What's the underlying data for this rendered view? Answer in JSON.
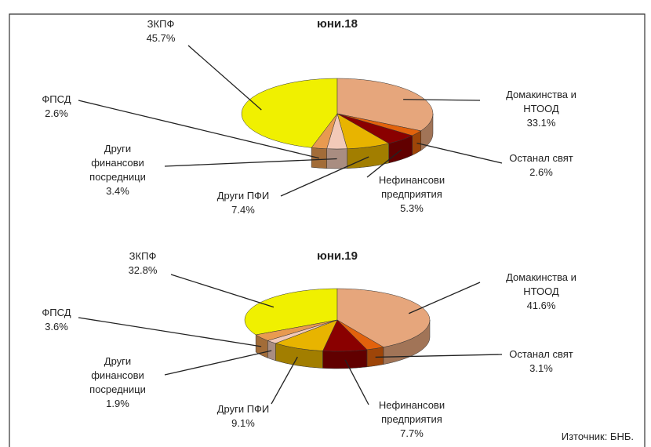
{
  "chart_data": [
    {
      "type": "pie3d",
      "title": "юни.18",
      "categories": [
        "ЗКПФ",
        "Домакинства и\nНТООД",
        "Останал свят",
        "Нефинансови\nпредприятия",
        "Други ПФИ",
        "Други\nфинансови\nпосредници",
        "ФПСД"
      ],
      "values": [
        45.7,
        33.1,
        2.6,
        5.3,
        7.4,
        3.4,
        2.6
      ],
      "value_labels": [
        "45.7%",
        "33.1%",
        "2.6%",
        "5.3%",
        "7.4%",
        "3.4%",
        "2.6%"
      ],
      "colors": [
        "#f0f000",
        "#e6a67c",
        "#e2620c",
        "#8a0000",
        "#e8b400",
        "#f2c9b8",
        "#e89a50"
      ]
    },
    {
      "type": "pie3d",
      "title": "юни.19",
      "categories": [
        "ЗКПФ",
        "Домакинства и\nНТООД",
        "Останал свят",
        "Нефинансови\nпредприятия",
        "Други ПФИ",
        "Други\nфинансови\nпосредници",
        "ФПСД"
      ],
      "values": [
        32.8,
        41.6,
        3.1,
        7.7,
        9.1,
        1.9,
        3.6
      ],
      "value_labels": [
        "32.8%",
        "41.6%",
        "3.1%",
        "7.7%",
        "9.1%",
        "1.9%",
        "3.6%"
      ],
      "colors": [
        "#f0f000",
        "#e6a67c",
        "#e2620c",
        "#8a0000",
        "#e8b400",
        "#f2c9b8",
        "#e89a50"
      ]
    }
  ],
  "source": "Източник: БНБ."
}
